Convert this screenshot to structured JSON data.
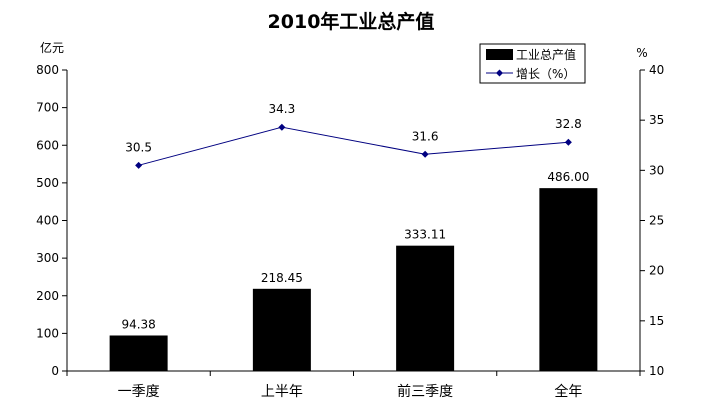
{
  "chart_data": {
    "type": "bar",
    "title": "2010年工业总产值",
    "categories": [
      "一季度",
      "上半年",
      "前三季度",
      "全年"
    ],
    "y_left": {
      "unit": "亿元",
      "min": 0,
      "max": 800,
      "step": 100
    },
    "y_right": {
      "unit": "%",
      "min": 10,
      "max": 40,
      "step": 5
    },
    "series": [
      {
        "name": "工业总产值",
        "type": "bar",
        "axis": "left",
        "color": "#000000",
        "values": [
          94.38,
          218.45,
          333.11,
          486.0
        ],
        "labels": [
          "94.38",
          "218.45",
          "333.11",
          "486.00"
        ]
      },
      {
        "name": "增长（%）",
        "type": "line",
        "axis": "right",
        "color": "#000080",
        "marker": "diamond",
        "values": [
          30.5,
          34.3,
          31.6,
          32.8
        ],
        "labels": [
          "30.5",
          "34.3",
          "31.6",
          "32.8"
        ]
      }
    ],
    "legend": {
      "position": "top-right"
    },
    "grid": false
  }
}
